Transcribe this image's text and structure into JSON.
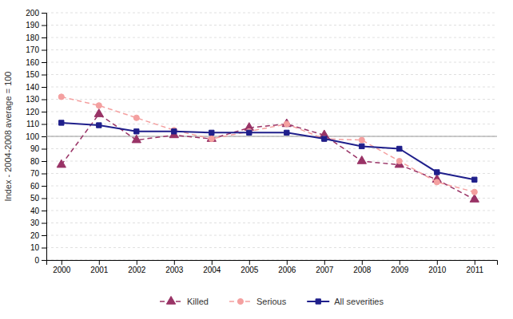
{
  "chart_data": {
    "type": "line",
    "ylabel": "Index - 2004-2008 average = 100",
    "x": [
      2000,
      2001,
      2002,
      2003,
      2004,
      2005,
      2006,
      2007,
      2008,
      2009,
      2010,
      2011
    ],
    "series": [
      {
        "name": "Killed",
        "color": "#993366",
        "marker": "triangle",
        "line_style": "dashed",
        "values": [
          77,
          118,
          97,
          101,
          98,
          107,
          110,
          101,
          80,
          77,
          65,
          49
        ]
      },
      {
        "name": "Serious",
        "color": "#F4A0A0",
        "marker": "circle",
        "line_style": "dashed",
        "values": [
          132,
          125,
          115,
          105,
          98,
          104,
          110,
          98,
          97,
          80,
          63,
          55
        ]
      },
      {
        "name": "All severities",
        "color": "#1F1F8B",
        "marker": "square",
        "line_style": "solid",
        "values": [
          111,
          109,
          104,
          104,
          103,
          103,
          103,
          98,
          92,
          90,
          71,
          65
        ]
      }
    ],
    "reference_line": 100,
    "xlim": [
      1999.6,
      2011.6
    ],
    "xticks": [
      2000,
      2001,
      2002,
      2003,
      2004,
      2005,
      2006,
      2007,
      2008,
      2009,
      2010,
      2011
    ],
    "ylim": [
      0,
      200
    ],
    "yticks": [
      0,
      10,
      20,
      30,
      40,
      50,
      60,
      70,
      80,
      90,
      100,
      110,
      120,
      130,
      140,
      150,
      160,
      170,
      180,
      190,
      200
    ],
    "grid": true,
    "legend": "bottom"
  }
}
